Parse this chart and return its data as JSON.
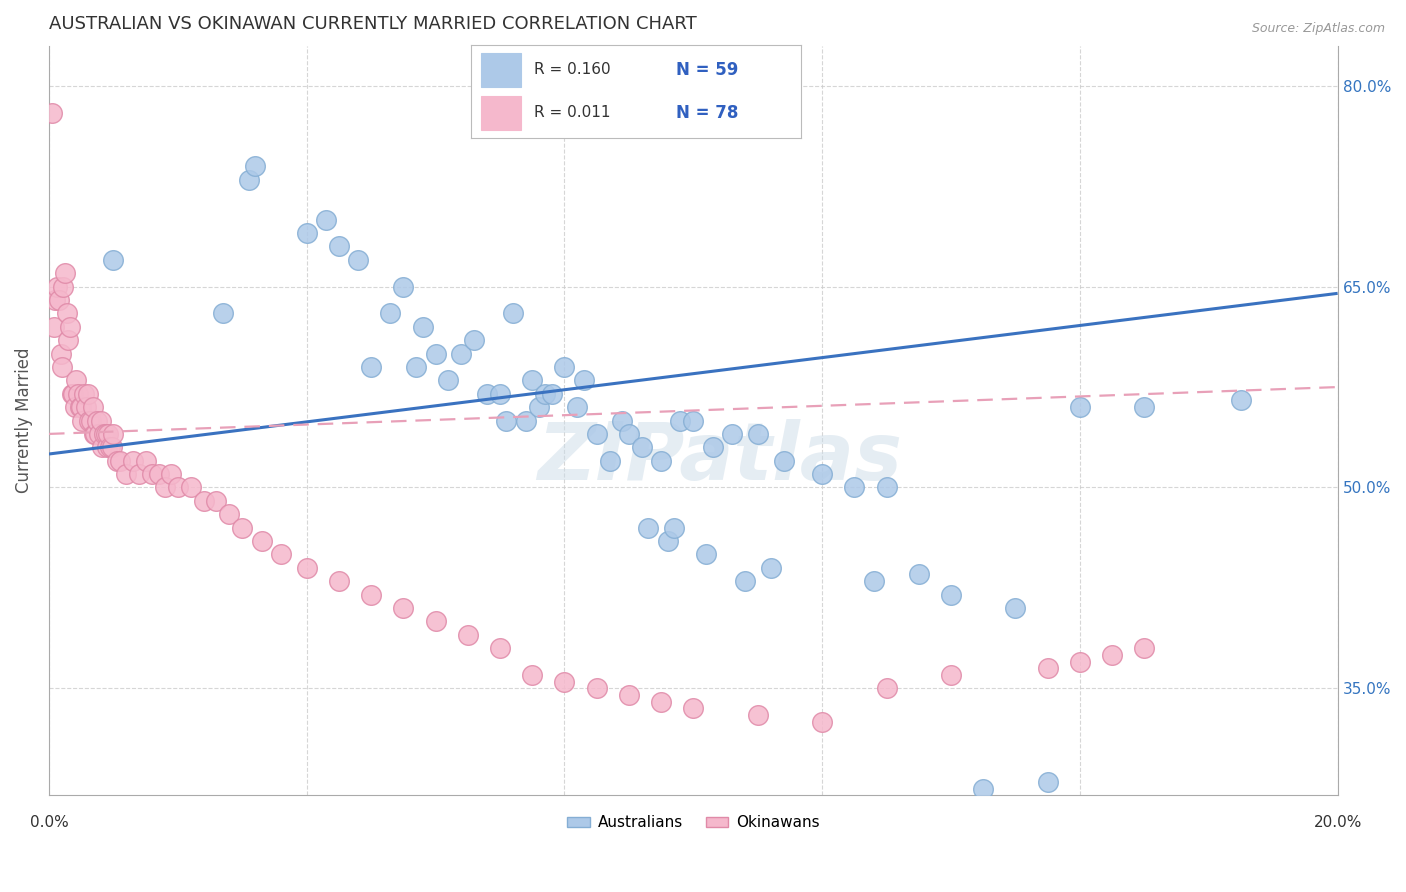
{
  "title": "AUSTRALIAN VS OKINAWAN CURRENTLY MARRIED CORRELATION CHART",
  "source": "Source: ZipAtlas.com",
  "ylabel": "Currently Married",
  "right_yticks": [
    35.0,
    50.0,
    65.0,
    80.0
  ],
  "watermark": "ZIPatlas",
  "blue_color": "#adc9e8",
  "pink_color": "#f5b8cc",
  "blue_edge": "#85aed4",
  "pink_edge": "#e08aa8",
  "trend_blue": "#3a72c0",
  "trend_pink": "#e8a0b8",
  "background": "#ffffff",
  "grid_color": "#cccccc",
  "xlim": [
    0.0,
    20.0
  ],
  "ylim": [
    27.0,
    83.0
  ],
  "aus_scatter_x": [
    1.0,
    2.7,
    3.1,
    3.2,
    4.0,
    4.3,
    4.5,
    4.8,
    5.0,
    5.3,
    5.5,
    5.7,
    5.8,
    6.0,
    6.2,
    6.4,
    6.6,
    6.8,
    7.0,
    7.1,
    7.2,
    7.4,
    7.5,
    7.6,
    7.7,
    7.8,
    8.0,
    8.2,
    8.3,
    8.5,
    8.7,
    8.9,
    9.0,
    9.2,
    9.5,
    9.8,
    10.0,
    10.3,
    10.6,
    11.0,
    11.4,
    12.0,
    12.5,
    13.0,
    14.5,
    15.5,
    16.0,
    17.0,
    18.5,
    9.3,
    9.6,
    9.7,
    10.2,
    10.8,
    11.2,
    12.8,
    13.5,
    14.0,
    15.0
  ],
  "aus_scatter_y": [
    67.0,
    63.0,
    73.0,
    74.0,
    69.0,
    70.0,
    68.0,
    67.0,
    59.0,
    63.0,
    65.0,
    59.0,
    62.0,
    60.0,
    58.0,
    60.0,
    61.0,
    57.0,
    57.0,
    55.0,
    63.0,
    55.0,
    58.0,
    56.0,
    57.0,
    57.0,
    59.0,
    56.0,
    58.0,
    54.0,
    52.0,
    55.0,
    54.0,
    53.0,
    52.0,
    55.0,
    55.0,
    53.0,
    54.0,
    54.0,
    52.0,
    51.0,
    50.0,
    50.0,
    27.5,
    28.0,
    56.0,
    56.0,
    56.5,
    47.0,
    46.0,
    47.0,
    45.0,
    43.0,
    44.0,
    43.0,
    43.5,
    42.0,
    41.0
  ],
  "oki_scatter_x": [
    0.05,
    0.08,
    0.1,
    0.12,
    0.15,
    0.18,
    0.2,
    0.22,
    0.25,
    0.28,
    0.3,
    0.32,
    0.35,
    0.38,
    0.4,
    0.42,
    0.45,
    0.48,
    0.5,
    0.52,
    0.55,
    0.58,
    0.6,
    0.62,
    0.65,
    0.68,
    0.7,
    0.72,
    0.75,
    0.78,
    0.8,
    0.82,
    0.85,
    0.88,
    0.9,
    0.92,
    0.95,
    0.98,
    1.0,
    1.05,
    1.1,
    1.2,
    1.3,
    1.4,
    1.5,
    1.6,
    1.7,
    1.8,
    1.9,
    2.0,
    2.2,
    2.4,
    2.6,
    2.8,
    3.0,
    3.3,
    3.6,
    4.0,
    4.5,
    5.0,
    5.5,
    6.0,
    6.5,
    7.0,
    7.5,
    8.0,
    8.5,
    9.0,
    9.5,
    10.0,
    11.0,
    12.0,
    13.0,
    14.0,
    15.5,
    16.0,
    16.5,
    17.0
  ],
  "oki_scatter_y": [
    78.0,
    62.0,
    64.0,
    65.0,
    64.0,
    60.0,
    59.0,
    65.0,
    66.0,
    63.0,
    61.0,
    62.0,
    57.0,
    57.0,
    56.0,
    58.0,
    57.0,
    56.0,
    56.0,
    55.0,
    57.0,
    56.0,
    57.0,
    55.0,
    55.0,
    56.0,
    54.0,
    54.0,
    55.0,
    54.0,
    55.0,
    53.0,
    54.0,
    54.0,
    53.0,
    54.0,
    53.0,
    53.0,
    54.0,
    52.0,
    52.0,
    51.0,
    52.0,
    51.0,
    52.0,
    51.0,
    51.0,
    50.0,
    51.0,
    50.0,
    50.0,
    49.0,
    49.0,
    48.0,
    47.0,
    46.0,
    45.0,
    44.0,
    43.0,
    42.0,
    41.0,
    40.0,
    39.0,
    38.0,
    36.0,
    35.5,
    35.0,
    34.5,
    34.0,
    33.5,
    33.0,
    32.5,
    35.0,
    36.0,
    36.5,
    37.0,
    37.5,
    38.0
  ],
  "aus_trend_x": [
    0.0,
    20.0
  ],
  "aus_trend_y": [
    52.5,
    64.5
  ],
  "oki_trend_x": [
    0.0,
    20.0
  ],
  "oki_trend_y": [
    54.0,
    57.5
  ]
}
